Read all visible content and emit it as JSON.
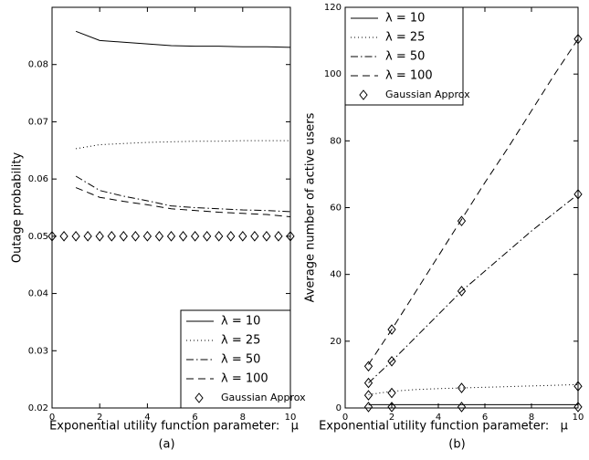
{
  "chart_data": [
    {
      "type": "line",
      "xlabel": "Exponential utility function parameter:   μ",
      "ylabel": "Outage probability",
      "caption": "(a)",
      "xlim": [
        0,
        10
      ],
      "ylim": [
        0.02,
        0.09
      ],
      "xticks": [
        0,
        2,
        4,
        6,
        8,
        10
      ],
      "yticks": [
        0.02,
        0.03,
        0.04,
        0.05,
        0.06,
        0.07,
        0.08
      ],
      "legend": "lower right",
      "series": [
        {
          "name": "λ = 10",
          "color": "#000000",
          "dash": "solid",
          "x": [
            1,
            2,
            3,
            4,
            5,
            6,
            7,
            8,
            9,
            10
          ],
          "values": [
            0.0858,
            0.0842,
            0.0839,
            0.0836,
            0.0833,
            0.0832,
            0.0832,
            0.0831,
            0.0831,
            0.083
          ]
        },
        {
          "name": "λ = 25",
          "color": "#000000",
          "dash": "dotted",
          "x": [
            1,
            2,
            3,
            4,
            5,
            6,
            7,
            8,
            9,
            10
          ],
          "values": [
            0.0653,
            0.066,
            0.0662,
            0.0664,
            0.0665,
            0.0666,
            0.0666,
            0.0667,
            0.0667,
            0.0667
          ]
        },
        {
          "name": "λ = 50",
          "color": "#000000",
          "dash": "dashdot",
          "x": [
            1,
            2,
            3,
            4,
            5,
            6,
            7,
            8,
            9,
            10
          ],
          "values": [
            0.0605,
            0.058,
            0.057,
            0.0562,
            0.0553,
            0.055,
            0.0548,
            0.0546,
            0.0545,
            0.0543
          ]
        },
        {
          "name": "λ = 100",
          "color": "#000000",
          "dash": "dashed",
          "x": [
            1,
            2,
            3,
            4,
            5,
            6,
            7,
            8,
            9,
            10
          ],
          "values": [
            0.0585,
            0.0568,
            0.0561,
            0.0555,
            0.0548,
            0.0545,
            0.0542,
            0.054,
            0.0538,
            0.0534
          ]
        },
        {
          "name": "Gaussian Approx",
          "color": "#000000",
          "marker": "diamond",
          "x": [
            0,
            0.5,
            1,
            1.5,
            2,
            2.5,
            3,
            3.5,
            4,
            4.5,
            5,
            5.5,
            6,
            6.5,
            7,
            7.5,
            8,
            8.5,
            9,
            9.5,
            10
          ],
          "values": [
            0.05,
            0.05,
            0.05,
            0.05,
            0.05,
            0.05,
            0.05,
            0.05,
            0.05,
            0.05,
            0.05,
            0.05,
            0.05,
            0.05,
            0.05,
            0.05,
            0.05,
            0.05,
            0.05,
            0.05,
            0.05
          ]
        }
      ]
    },
    {
      "type": "line",
      "xlabel": "Exponential utility function parameter:   μ",
      "ylabel": "Average number of active users",
      "caption": "(b)",
      "xlim": [
        0,
        10
      ],
      "ylim": [
        0,
        120
      ],
      "xticks": [
        0,
        2,
        4,
        6,
        8,
        10
      ],
      "yticks": [
        0,
        20,
        40,
        60,
        80,
        100,
        120
      ],
      "legend": "upper left",
      "series": [
        {
          "name": "λ = 10",
          "color": "#000000",
          "dash": "solid",
          "x": [
            1,
            2,
            3,
            4,
            5,
            6,
            7,
            8,
            9,
            10
          ],
          "values": [
            1,
            1,
            1,
            1,
            1,
            1,
            1,
            1,
            1,
            1
          ]
        },
        {
          "name": "λ = 25",
          "color": "#000000",
          "dash": "dotted",
          "x": [
            1,
            2,
            3,
            4,
            5,
            6,
            7,
            8,
            9,
            10
          ],
          "values": [
            4,
            5,
            5.5,
            5.8,
            6,
            6.2,
            6.4,
            6.6,
            6.8,
            7
          ]
        },
        {
          "name": "λ = 50",
          "color": "#000000",
          "dash": "dashdot",
          "x": [
            1,
            2,
            3,
            4,
            5,
            6,
            7,
            8,
            9,
            10
          ],
          "values": [
            7.5,
            14,
            21,
            28,
            35,
            41,
            47,
            53,
            58.5,
            64
          ]
        },
        {
          "name": "λ = 100",
          "color": "#000000",
          "dash": "dashed",
          "x": [
            1,
            2,
            3,
            4,
            5,
            6,
            7,
            8,
            9,
            10
          ],
          "values": [
            13,
            23.5,
            34.5,
            45.5,
            56.5,
            67.5,
            78,
            89,
            100,
            110.5
          ]
        },
        {
          "name": "Gaussian Approx",
          "color": "#000000",
          "marker": "diamond",
          "x": [
            1,
            2,
            5,
            10,
            1,
            2,
            5,
            10,
            1,
            2,
            5,
            10,
            1,
            2,
            5,
            10
          ],
          "values": [
            0.3,
            0.3,
            0.3,
            0.3,
            3.8,
            4.5,
            6,
            6.5,
            7.5,
            14,
            35,
            64,
            12.5,
            23.5,
            56,
            110.5
          ]
        }
      ]
    }
  ]
}
